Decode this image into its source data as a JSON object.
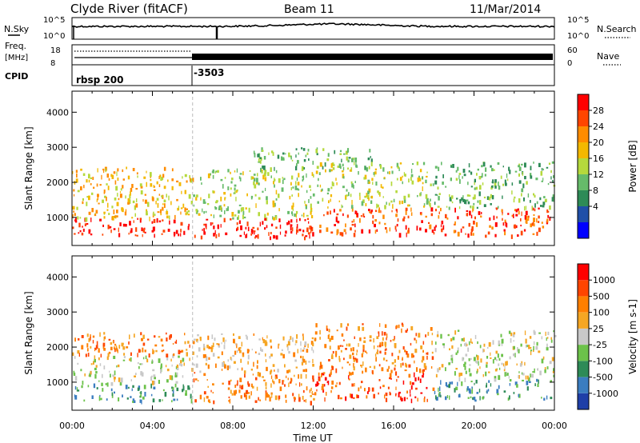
{
  "header": {
    "title": "Clyde River (fitACF)",
    "beam": "Beam 11",
    "date": "11/Mar/2014"
  },
  "top_panels": {
    "nsky_label": "N.Sky",
    "nsky_ticks": [
      "10^5",
      "10^0"
    ],
    "nsearch_label": "N.Search",
    "nsearch_ticks": [
      "10^5",
      "10^0"
    ],
    "freq_label": "Freq.",
    "freq_unit": "[MHz]",
    "freq_ticks": [
      "18",
      "8"
    ],
    "nave_label": "Nave",
    "nave_ticks": [
      "60",
      "0"
    ],
    "cpid_label": "CPID",
    "cpid_entries": [
      {
        "label": "rbsp 200",
        "start_hour": 0
      },
      {
        "label": "-3503",
        "start_hour": 6
      }
    ]
  },
  "chart_data": [
    {
      "type": "heatmap",
      "name": "power",
      "ylabel": "Slant Range [km]",
      "ylim": [
        200,
        4600
      ],
      "y_ticks": [
        "1000",
        "2000",
        "3000",
        "4000"
      ],
      "xlim_hours": [
        0,
        24
      ],
      "colorbar": {
        "label": "Power [dB]",
        "ticks": [
          "28",
          "24",
          "20",
          "16",
          "12",
          "8",
          "4"
        ],
        "colors": [
          "#0000ff",
          "#204fa8",
          "#2e8b57",
          "#66bb6a",
          "#b5d93c",
          "#f3b800",
          "#ff8c00",
          "#ff4500",
          "#ff0000"
        ]
      },
      "scatter_regions": [
        {
          "h0": 0,
          "h1": 6,
          "r0": 500,
          "r1": 1000,
          "level": 8
        },
        {
          "h0": 0,
          "h1": 6,
          "r0": 1000,
          "r1": 2450,
          "level": 5
        },
        {
          "h0": 6,
          "h1": 12,
          "r0": 450,
          "r1": 1000,
          "level": 8
        },
        {
          "h0": 6,
          "h1": 12,
          "r0": 1000,
          "r1": 2400,
          "level": 4
        },
        {
          "h0": 9,
          "h1": 15,
          "r0": 2400,
          "r1": 3000,
          "level": 3
        },
        {
          "h0": 12,
          "h1": 18,
          "r0": 550,
          "r1": 1300,
          "level": 7
        },
        {
          "h0": 12,
          "h1": 18,
          "r0": 1300,
          "r1": 2600,
          "level": 4
        },
        {
          "h0": 18,
          "h1": 24,
          "r0": 500,
          "r1": 1300,
          "level": 7
        },
        {
          "h0": 18,
          "h1": 24,
          "r0": 1300,
          "r1": 2600,
          "level": 3
        }
      ]
    },
    {
      "type": "heatmap",
      "name": "velocity",
      "ylabel": "Slant Range [km]",
      "ylim": [
        200,
        4600
      ],
      "y_ticks": [
        "1000",
        "2000",
        "3000",
        "4000"
      ],
      "xlim_hours": [
        0,
        24
      ],
      "x_ticks": [
        "00:00",
        "04:00",
        "08:00",
        "12:00",
        "16:00",
        "20:00",
        "00:00"
      ],
      "xlabel": "Time UT",
      "colorbar": {
        "label": "Velocity [m s-1]",
        "ticks": [
          "1000",
          "500",
          "100",
          "25",
          "-25",
          "-100",
          "-500",
          "-1000"
        ],
        "colors": [
          "#1f3fa8",
          "#3b7dc0",
          "#2e8b57",
          "#6cc24a",
          "#c8c8c8",
          "#f5a623",
          "#ff7f00",
          "#ff4500",
          "#ff0000"
        ]
      },
      "scatter_regions": [
        {
          "h0": 0,
          "h1": 6,
          "r0": 450,
          "r1": 1000,
          "level": 2
        },
        {
          "h0": 0,
          "h1": 6,
          "r0": 1000,
          "r1": 1800,
          "level": 4
        },
        {
          "h0": 0,
          "h1": 6,
          "r0": 1800,
          "r1": 2450,
          "level": 6
        },
        {
          "h0": 6,
          "h1": 12,
          "r0": 450,
          "r1": 1300,
          "level": 6
        },
        {
          "h0": 6,
          "h1": 12,
          "r0": 1300,
          "r1": 2400,
          "level": 5
        },
        {
          "h0": 12,
          "h1": 18,
          "r0": 500,
          "r1": 1300,
          "level": 7
        },
        {
          "h0": 12,
          "h1": 18,
          "r0": 1300,
          "r1": 2700,
          "level": 6
        },
        {
          "h0": 18,
          "h1": 24,
          "r0": 500,
          "r1": 1100,
          "level": 2
        },
        {
          "h0": 18,
          "h1": 24,
          "r0": 1100,
          "r1": 2500,
          "level": 4
        }
      ]
    }
  ]
}
